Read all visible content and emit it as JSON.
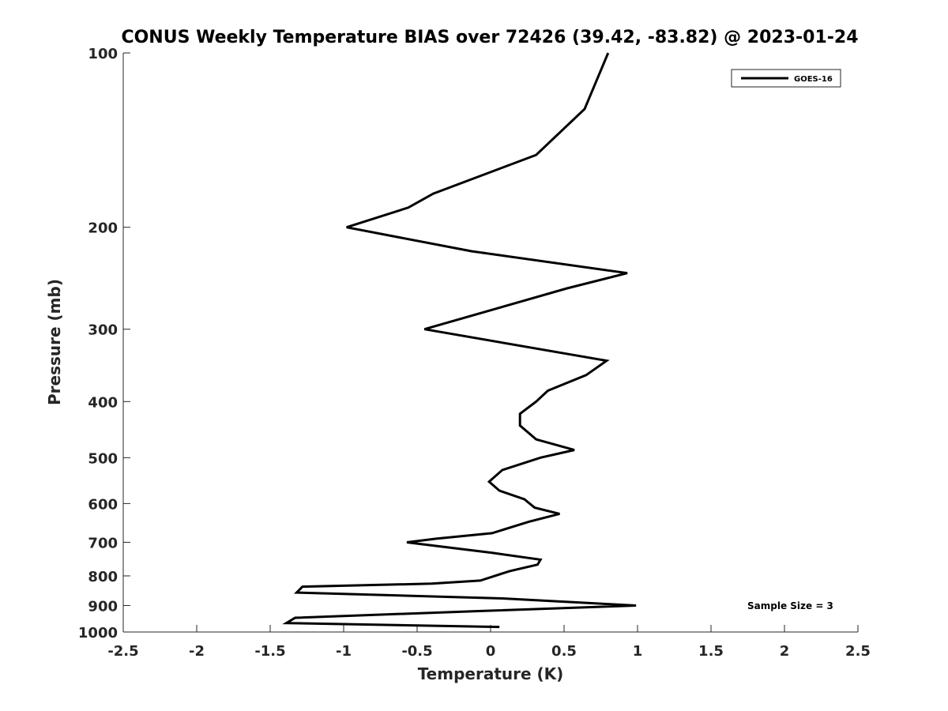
{
  "chart_data": {
    "type": "line",
    "title": "CONUS Weekly Temperature BIAS over 72426 (39.42, -83.82) @ 2023-01-24",
    "xlabel": "Temperature (K)",
    "ylabel": "Pressure (mb)",
    "xlim": [
      -2.5,
      2.5
    ],
    "ylim": [
      1000,
      100
    ],
    "yscale": "log",
    "y_reversed": true,
    "xticks": [
      -2.5,
      -2,
      -1.5,
      -1,
      -0.5,
      0,
      0.5,
      1,
      1.5,
      2,
      2.5
    ],
    "xtick_labels": [
      "-2.5",
      "-2",
      "-1.5",
      "-1",
      "-0.5",
      "0",
      "0.5",
      "1",
      "1.5",
      "2",
      "2.5"
    ],
    "yticks": [
      100,
      200,
      300,
      400,
      500,
      600,
      700,
      800,
      900,
      1000
    ],
    "ytick_labels": [
      "100",
      "200",
      "300",
      "400",
      "500",
      "600",
      "700",
      "800",
      "900",
      "1000"
    ],
    "grid": false,
    "legend_position": "top-right",
    "annotation": "Sample Size = 3",
    "series": [
      {
        "name": "GOES-16",
        "color": "#000000",
        "points": [
          {
            "x": 0.8,
            "y": 100
          },
          {
            "x": 0.64,
            "y": 125
          },
          {
            "x": 0.31,
            "y": 150
          },
          {
            "x": -0.39,
            "y": 175
          },
          {
            "x": -0.56,
            "y": 185
          },
          {
            "x": -0.98,
            "y": 200
          },
          {
            "x": -0.13,
            "y": 220
          },
          {
            "x": 0.93,
            "y": 240
          },
          {
            "x": 0.52,
            "y": 255
          },
          {
            "x": -0.45,
            "y": 300
          },
          {
            "x": 0.79,
            "y": 340
          },
          {
            "x": 0.65,
            "y": 360
          },
          {
            "x": 0.39,
            "y": 383
          },
          {
            "x": 0.31,
            "y": 400
          },
          {
            "x": 0.2,
            "y": 420
          },
          {
            "x": 0.2,
            "y": 440
          },
          {
            "x": 0.31,
            "y": 465
          },
          {
            "x": 0.57,
            "y": 485
          },
          {
            "x": 0.34,
            "y": 500
          },
          {
            "x": 0.08,
            "y": 525
          },
          {
            "x": -0.01,
            "y": 550
          },
          {
            "x": 0.06,
            "y": 570
          },
          {
            "x": 0.23,
            "y": 590
          },
          {
            "x": 0.3,
            "y": 610
          },
          {
            "x": 0.47,
            "y": 625
          },
          {
            "x": 0.26,
            "y": 645
          },
          {
            "x": 0.01,
            "y": 675
          },
          {
            "x": -0.37,
            "y": 690
          },
          {
            "x": -0.57,
            "y": 700
          },
          {
            "x": 0.01,
            "y": 730
          },
          {
            "x": 0.34,
            "y": 750
          },
          {
            "x": 0.32,
            "y": 765
          },
          {
            "x": 0.13,
            "y": 785
          },
          {
            "x": -0.07,
            "y": 815
          },
          {
            "x": -0.4,
            "y": 825
          },
          {
            "x": -1.28,
            "y": 835
          },
          {
            "x": -1.32,
            "y": 855
          },
          {
            "x": 0.08,
            "y": 875
          },
          {
            "x": 0.99,
            "y": 900
          },
          {
            "x": -0.08,
            "y": 920
          },
          {
            "x": -1.33,
            "y": 945
          },
          {
            "x": -1.39,
            "y": 965
          },
          {
            "x": 0.06,
            "y": 980
          }
        ]
      }
    ]
  }
}
